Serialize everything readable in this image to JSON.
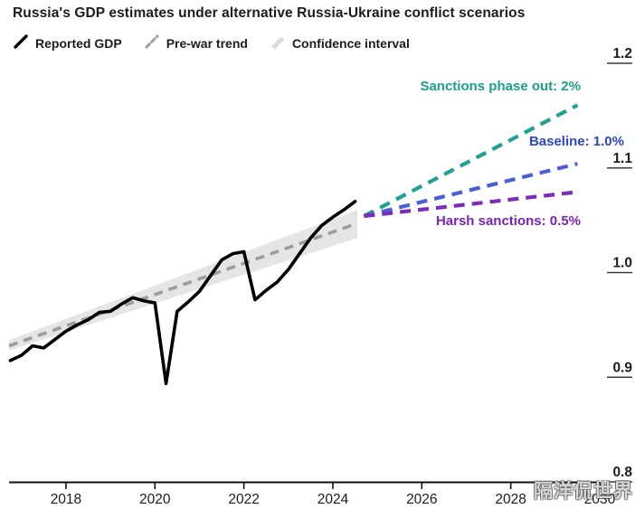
{
  "title": "Russia's GDP estimates under alternative Russia-Ukraine conflict scenarios",
  "legend": [
    {
      "label": "Reported GDP",
      "icon": "solid-slash-icon",
      "color": "#000000"
    },
    {
      "label": "Pre-war trend",
      "icon": "dashed-slash-icon",
      "color": "#a3a3a3"
    },
    {
      "label": "Confidence interval",
      "icon": "band-icon",
      "color": "#d8d8d8"
    }
  ],
  "watermark": "隔洋侃世界",
  "chart_data": {
    "type": "line",
    "title": "Russia's GDP estimates under alternative Russia-Ukraine conflict scenarios",
    "xlabel": "",
    "ylabel": "",
    "xlim": [
      2016.72,
      2030.0
    ],
    "ylim": [
      0.8,
      1.2
    ],
    "x_ticks": [
      2018,
      2020,
      2022,
      2024,
      2026,
      2028,
      2030
    ],
    "x_tick_labels": [
      "2018",
      "2020",
      "2022",
      "2024",
      "2026",
      "2028",
      "2030"
    ],
    "y_ticks": [
      0.8,
      0.9,
      1.0,
      1.1,
      1.2
    ],
    "y_tick_labels": [
      "0.8",
      "0.9",
      "1.0",
      "1.1",
      "1.2"
    ],
    "grid": false,
    "legend_position": "top-left",
    "series": [
      {
        "name": "Confidence interval",
        "type": "band",
        "color": "#e3e3e3",
        "style": "solid",
        "x": [
          2016.72,
          2024.55
        ],
        "y_top": [
          0.9355,
          1.06
        ],
        "y_bottom": [
          0.9255,
          1.033
        ]
      },
      {
        "name": "Pre-war trend",
        "type": "line",
        "color": "#9d9d9d",
        "style": "dashed",
        "x": [
          2016.72,
          2024.55
        ],
        "y": [
          0.93,
          1.047
        ]
      },
      {
        "name": "Sanctions phase out: 2%",
        "type": "line",
        "color": "#1fa294",
        "style": "dashed",
        "x": [
          2024.7,
          2029.5
        ],
        "y": [
          1.054,
          1.16
        ]
      },
      {
        "name": "Baseline: 1.0%",
        "type": "line",
        "color": "#4a5fd8",
        "style": "dashed",
        "x": [
          2024.7,
          2029.5
        ],
        "y": [
          1.054,
          1.104
        ]
      },
      {
        "name": "Harsh sanctions: 0.5%",
        "type": "line",
        "color": "#7c2cbb",
        "style": "dashed",
        "x": [
          2024.7,
          2029.5
        ],
        "y": [
          1.054,
          1.077
        ]
      },
      {
        "name": "Reported GDP",
        "type": "line",
        "color": "#000000",
        "style": "solid",
        "x": [
          2016.75,
          2017.0,
          2017.25,
          2017.5,
          2017.75,
          2018.0,
          2018.25,
          2018.5,
          2018.75,
          2019.0,
          2019.25,
          2019.5,
          2019.75,
          2020.0,
          2020.25,
          2020.5,
          2020.75,
          2021.0,
          2021.25,
          2021.5,
          2021.75,
          2022.0,
          2022.25,
          2022.5,
          2022.75,
          2023.0,
          2023.25,
          2023.5,
          2023.75,
          2024.0,
          2024.25,
          2024.5
        ],
        "y": [
          0.916,
          0.921,
          0.93,
          0.928,
          0.936,
          0.944,
          0.95,
          0.955,
          0.962,
          0.963,
          0.97,
          0.976,
          0.973,
          0.971,
          0.894,
          0.963,
          0.972,
          0.982,
          0.997,
          1.012,
          1.018,
          1.02,
          0.974,
          0.983,
          0.991,
          1.003,
          1.018,
          1.033,
          1.045,
          1.053,
          1.06,
          1.068
        ]
      }
    ],
    "annotations": [
      {
        "text": "Sanctions phase out: 2%",
        "color": "#1b9e90",
        "anchor_year": 2029.5,
        "value": 1.185
      },
      {
        "text": "Baseline: 1.0%",
        "color": "#2b46cb",
        "anchor_year": 2030.0,
        "value": 1.135
      },
      {
        "text": "Harsh sanctions: 0.5%",
        "color": "#7c22b5",
        "anchor_year": 2029.5,
        "value": 1.055
      }
    ]
  }
}
